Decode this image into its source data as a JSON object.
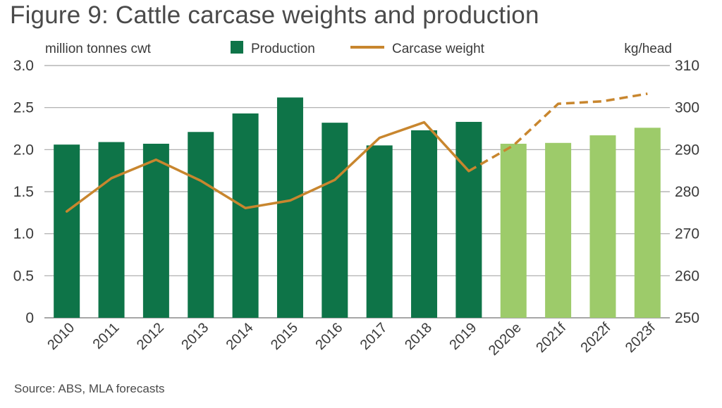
{
  "title": "Figure 9: Cattle carcase weights and production",
  "source": "Source: ABS, MLA forecasts",
  "chart_data": {
    "type": "bar",
    "categories": [
      "2010",
      "2011",
      "2012",
      "2013",
      "2014",
      "2015",
      "2016",
      "2017",
      "2018",
      "2019",
      "2020e",
      "2021f",
      "2022f",
      "2023f"
    ],
    "y_left": {
      "label": "million tonnes cwt",
      "range": [
        0,
        3.0
      ],
      "ticks": [
        "0",
        "0.5",
        "1.0",
        "1.5",
        "2.0",
        "2.5",
        "3.0"
      ]
    },
    "y_right": {
      "label": "kg/head",
      "range": [
        250,
        310
      ],
      "ticks": [
        "250",
        "260",
        "270",
        "280",
        "290",
        "300",
        "310"
      ]
    },
    "legend": {
      "placement": "top",
      "items": [
        "Production",
        "Carcase weight"
      ]
    },
    "grid": true,
    "series": [
      {
        "name": "Production",
        "kind": "bar",
        "axis": "left",
        "values": [
          2.06,
          2.09,
          2.07,
          2.21,
          2.43,
          2.62,
          2.32,
          2.05,
          2.23,
          2.33,
          2.07,
          2.08,
          2.17,
          2.26
        ],
        "forecast_from_index": 10
      },
      {
        "name": "Carcase weight",
        "kind": "line",
        "axis": "right",
        "values": [
          275.3,
          283.2,
          287.6,
          282.6,
          276.1,
          277.9,
          282.8,
          292.8,
          296.5,
          284.9,
          291.0,
          300.9,
          301.5,
          303.3
        ],
        "dashed_from_index": 10
      }
    ],
    "colors": {
      "production": "#0e7448",
      "production_forecast": "#9dcb6a",
      "carcase_weight": "#c8862e",
      "grid": "#a8a8a8"
    }
  }
}
